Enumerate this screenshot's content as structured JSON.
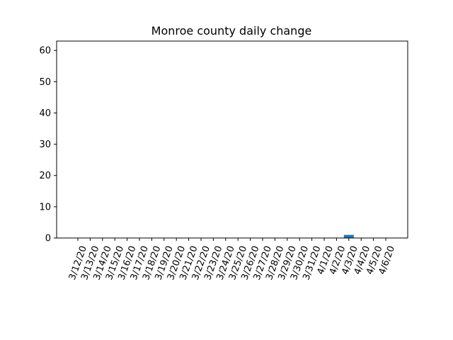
{
  "chart_data": {
    "type": "bar",
    "title": "Monroe county daily change",
    "xlabel": "",
    "ylabel": "",
    "categories": [
      "3/12/20",
      "3/13/20",
      "3/14/20",
      "3/15/20",
      "3/16/20",
      "3/17/20",
      "3/18/20",
      "3/19/20",
      "3/20/20",
      "3/21/20",
      "3/22/20",
      "3/23/20",
      "3/24/20",
      "3/25/20",
      "3/26/20",
      "3/27/20",
      "3/28/20",
      "3/29/20",
      "3/30/20",
      "3/31/20",
      "4/1/20",
      "4/2/20",
      "4/3/20",
      "4/4/20",
      "4/5/20",
      "4/6/20"
    ],
    "values": [
      0,
      0,
      0,
      0,
      0,
      0,
      0,
      0,
      0,
      0,
      0,
      0,
      0,
      0,
      0,
      0,
      0,
      0,
      0,
      0,
      0,
      0,
      1,
      0,
      0,
      0
    ],
    "ylim": [
      0,
      63
    ],
    "yticks": [
      0,
      10,
      20,
      30,
      40,
      50,
      60
    ],
    "grid": false,
    "bar_color": "#1f77b4"
  }
}
